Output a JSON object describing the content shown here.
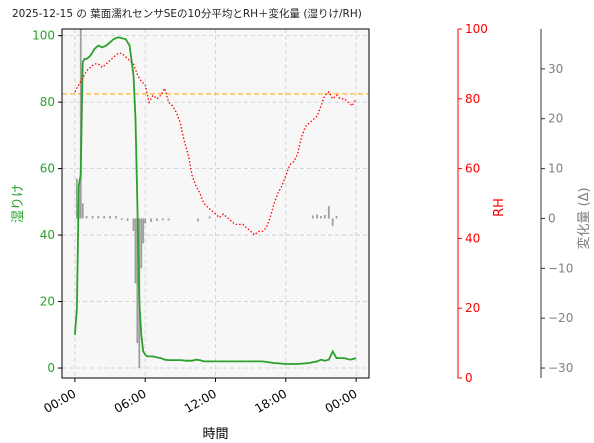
{
  "chart_data": {
    "type": "line",
    "title": "2025-12-15 の 葉面濡れセンサSEの10分平均とRH＋変化量 (湿りけ/RH)",
    "xlabel": "時間",
    "x_tick_labels": [
      "00:00",
      "06:00",
      "12:00",
      "18:00",
      "00:00"
    ],
    "x_tick_hours": [
      0,
      6,
      12,
      18,
      24
    ],
    "xlim": [
      -1.1,
      25.1
    ],
    "axes": {
      "wetness": {
        "label": "湿りけ",
        "color": "#2ca02c",
        "ylim": [
          -3,
          102
        ],
        "ticks": [
          0,
          20,
          40,
          60,
          80,
          100
        ]
      },
      "rh": {
        "label": "RH",
        "color": "#ff0000",
        "ylim": [
          0,
          100
        ],
        "ticks": [
          0,
          20,
          40,
          60,
          80,
          100
        ]
      },
      "delta": {
        "label": "変化量 (Δ)",
        "color": "#808080",
        "ylim": [
          -32,
          38
        ],
        "ticks": [
          -30,
          -20,
          -10,
          0,
          10,
          20,
          30
        ],
        "tick_labels": [
          "−30",
          "−20",
          "−10",
          "0",
          "10",
          "20",
          "30"
        ]
      }
    },
    "threshold": {
      "axis": "wetness",
      "value": 82.5,
      "color": "#ffa500"
    },
    "grid": true,
    "series": [
      {
        "axis": "wetness",
        "style": "solid",
        "color": "#2ca02c",
        "x": [
          0,
          0.17,
          0.33,
          0.5,
          0.67,
          0.83,
          1.0,
          1.17,
          1.33,
          1.5,
          1.67,
          2.0,
          2.33,
          2.67,
          3.0,
          3.33,
          3.67,
          4.0,
          4.33,
          4.67,
          5.0,
          5.17,
          5.33,
          5.5,
          5.67,
          5.83,
          6.0,
          6.17,
          6.33,
          6.5,
          6.67,
          7.0,
          7.33,
          7.67,
          8.0,
          8.5,
          9.0,
          9.5,
          10.0,
          10.33,
          10.67,
          11.0,
          12.0,
          13.0,
          14.0,
          15.0,
          16.0,
          17.0,
          18.0,
          19.0,
          20.0,
          20.67,
          21.0,
          21.33,
          21.67,
          22.0,
          22.33,
          23.0,
          23.5,
          24.0
        ],
        "y": [
          10,
          18,
          55,
          58,
          92,
          93,
          93,
          93.5,
          94,
          95,
          96,
          97,
          96.5,
          97,
          98,
          99,
          99.5,
          99.2,
          99,
          97,
          88,
          75,
          50,
          20,
          10,
          5,
          4,
          3.5,
          3.5,
          3.5,
          3.5,
          3.2,
          3.0,
          2.5,
          2.4,
          2.4,
          2.4,
          2.2,
          2.2,
          2.5,
          2.4,
          2.0,
          2.0,
          2.0,
          2.0,
          2.0,
          2.0,
          1.5,
          1.2,
          1.2,
          1.5,
          2.0,
          2.5,
          2.2,
          2.5,
          5.0,
          3.0,
          3.0,
          2.5,
          3.0
        ]
      },
      {
        "axis": "rh",
        "style": "dotted",
        "color": "#ff0000",
        "x": [
          0,
          0.33,
          0.67,
          1.0,
          1.33,
          1.67,
          2.0,
          2.33,
          2.67,
          3.0,
          3.33,
          3.67,
          4.0,
          4.33,
          4.67,
          5.0,
          5.33,
          5.67,
          6.0,
          6.33,
          6.67,
          7.0,
          7.33,
          7.67,
          8.0,
          8.33,
          8.67,
          9.0,
          9.33,
          9.67,
          10.0,
          10.33,
          10.67,
          11.0,
          11.33,
          11.67,
          12.0,
          12.33,
          12.67,
          13.0,
          13.33,
          13.67,
          14.0,
          14.33,
          14.67,
          15.0,
          15.33,
          15.67,
          16.0,
          16.33,
          16.67,
          17.0,
          17.33,
          17.67,
          18.0,
          18.33,
          18.67,
          19.0,
          19.33,
          19.67,
          20.0,
          20.33,
          20.67,
          21.0,
          21.33,
          21.67,
          22.0,
          22.33,
          22.67,
          23.0,
          23.33,
          23.67,
          24.0
        ],
        "y": [
          82,
          84,
          86,
          88,
          89,
          90,
          90,
          89,
          90,
          91,
          92,
          93,
          93,
          92,
          91,
          90,
          87,
          85,
          84,
          79,
          81,
          80,
          81,
          83,
          79,
          78,
          76,
          73,
          68,
          64,
          58,
          55,
          53,
          50,
          49,
          48,
          47,
          46,
          47,
          46,
          45,
          44,
          44,
          44,
          43,
          42,
          41,
          42,
          42,
          43,
          46,
          50,
          53,
          55,
          58,
          61,
          62,
          64,
          69,
          72,
          73,
          74,
          75,
          78,
          81,
          82,
          80,
          81,
          80,
          80,
          79,
          78,
          80
        ]
      }
    ],
    "delta_bars": {
      "axis": "delta",
      "color": "#808080",
      "width_hours": 0.15,
      "x": [
        0.17,
        0.33,
        0.5,
        0.67,
        1.0,
        1.5,
        2.0,
        2.5,
        3.0,
        3.5,
        4.0,
        4.5,
        5.0,
        5.17,
        5.33,
        5.5,
        5.67,
        5.83,
        6.0,
        6.5,
        7.0,
        7.5,
        8.0,
        10.5,
        11.5,
        20.3,
        20.67,
        21.0,
        21.33,
        21.67,
        22.0,
        22.33
      ],
      "y": [
        8,
        4,
        38,
        3,
        0.5,
        0.5,
        0.5,
        0.5,
        0.5,
        0.5,
        -0.3,
        -0.5,
        -2.5,
        -13,
        -25,
        -30,
        -10,
        -5,
        -1,
        -0.7,
        -0.5,
        -0.4,
        -0.4,
        -0.6,
        0.4,
        0.6,
        0.8,
        0.5,
        0.7,
        2.5,
        -1.5,
        0.5
      ]
    }
  }
}
